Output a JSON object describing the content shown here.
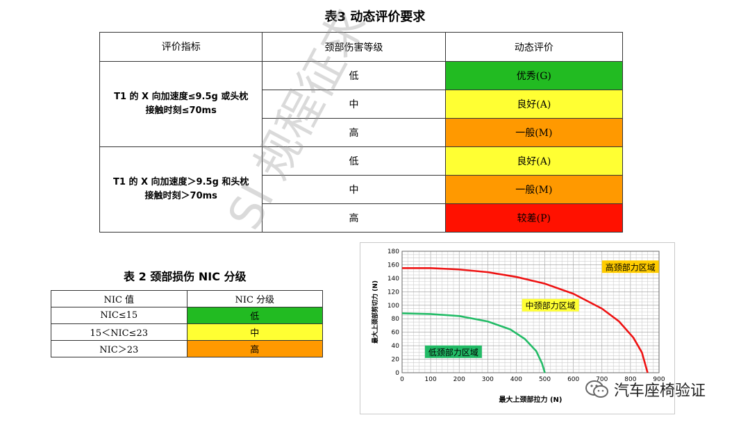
{
  "table3": {
    "title": "表3 动态评价要求",
    "headers": [
      "评价指标",
      "颈部伤害等级",
      "动态评价"
    ],
    "groups": [
      {
        "indicator_line1": "T1 的 X 向加速度≤9.5g 或头枕",
        "indicator_line2": "接触时刻≤70ms",
        "rows": [
          {
            "level": "低",
            "rating": "优秀(G)",
            "color": "#22bb22"
          },
          {
            "level": "中",
            "rating": "良好(A)",
            "color": "#ffff33"
          },
          {
            "level": "高",
            "rating": "一般(M)",
            "color": "#ff9900"
          }
        ]
      },
      {
        "indicator_line1": "T1 的 X 向加速度＞9.5g 和头枕",
        "indicator_line2": "接触时刻＞70ms",
        "rows": [
          {
            "level": "低",
            "rating": "良好(A)",
            "color": "#ffff33"
          },
          {
            "level": "中",
            "rating": "一般(M)",
            "color": "#ff9900"
          },
          {
            "level": "高",
            "rating": "较差(P)",
            "color": "#ff1100"
          }
        ]
      }
    ]
  },
  "table2": {
    "title": "表 2 颈部损伤 NIC 分级",
    "headers": [
      "NIC 值",
      "NIC 分级"
    ],
    "rows": [
      {
        "value": "NIC≤15",
        "grade": "低",
        "color": "#22bb22"
      },
      {
        "value": "15＜NIC≤23",
        "grade": "中",
        "color": "#ffff33"
      },
      {
        "value": "NIC＞23",
        "grade": "高",
        "color": "#ff9900"
      }
    ]
  },
  "chart_data": {
    "type": "line",
    "xlabel": "最大上颈部拉力 (N)",
    "ylabel": "最大上颈部剪切力 (N)",
    "xlim": [
      0,
      900
    ],
    "ylim": [
      0,
      180
    ],
    "x_ticks": [
      0,
      100,
      200,
      300,
      400,
      500,
      600,
      700,
      800,
      900
    ],
    "y_ticks": [
      0,
      20,
      40,
      60,
      80,
      100,
      120,
      140,
      160,
      180
    ],
    "grid": true,
    "series": [
      {
        "color": "#22bb66",
        "x": [
          0,
          100,
          200,
          300,
          380,
          430,
          470,
          490,
          500
        ],
        "y": [
          88,
          87,
          84,
          76,
          64,
          50,
          32,
          14,
          0
        ]
      },
      {
        "color": "#ee1111",
        "x": [
          0,
          100,
          200,
          300,
          400,
          500,
          600,
          700,
          760,
          810,
          840,
          860
        ],
        "y": [
          155,
          155,
          153,
          149,
          142,
          132,
          117,
          95,
          76,
          52,
          30,
          0
        ]
      }
    ],
    "annotations": [
      {
        "text": "高颈部力区域",
        "x": 700,
        "y": 153,
        "color": "#ffcc00"
      },
      {
        "text": "中颈部力区域",
        "x": 420,
        "y": 96,
        "color": "#ffff33"
      },
      {
        "text": "低颈部力区域",
        "x": 80,
        "y": 27,
        "color": "#22bb66"
      }
    ]
  },
  "overlay": {
    "watermark": "SI 规程征求",
    "wechat_label": "汽车座椅验证",
    "wechat_icon": "wechat-icon"
  }
}
